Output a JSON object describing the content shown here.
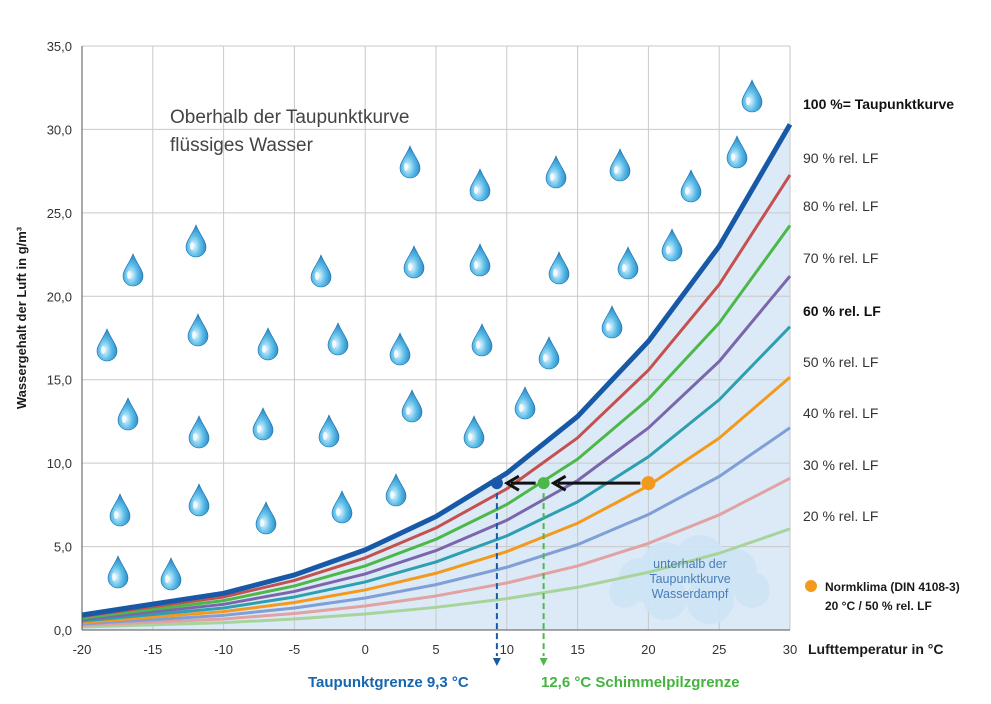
{
  "chart_data": {
    "type": "line",
    "ylabel": "Wassergehalt der Luft in g/m³",
    "xlabel": "Lufttemperatur in °C",
    "xlim": [
      -20,
      30
    ],
    "ylim": [
      0,
      35
    ],
    "xticks": [
      "-20",
      "-15",
      "-10",
      "-5",
      "0",
      "5",
      "10",
      "15",
      "20",
      "25",
      "30"
    ],
    "yticks": [
      "0,0",
      "5,0",
      "10,0",
      "15,0",
      "20,0",
      "25,0",
      "30,0",
      "35,0"
    ],
    "grid": true,
    "x": [
      -20,
      -10,
      -5,
      0,
      5,
      10,
      15,
      20,
      25,
      30
    ],
    "saturation": [
      0.9,
      2.2,
      3.3,
      4.8,
      6.8,
      9.4,
      12.8,
      17.3,
      23.0,
      30.3
    ],
    "series": [
      {
        "name": "100 %= Taupunktkurve",
        "rh": 100,
        "color": "#1759a6",
        "width": 5
      },
      {
        "name": "90 % rel. LF",
        "rh": 90,
        "color": "#c4504f",
        "width": 3
      },
      {
        "name": "80 % rel. LF",
        "rh": 80,
        "color": "#4cb849",
        "width": 3
      },
      {
        "name": "70 % rel. LF",
        "rh": 70,
        "color": "#7b66ad",
        "width": 3
      },
      {
        "name": "60 % rel. LF",
        "rh": 60,
        "color": "#2e9fb1",
        "width": 3
      },
      {
        "name": "50 % rel. LF",
        "rh": 50,
        "color": "#f39a1e",
        "width": 3
      },
      {
        "name": "40 % rel. LF",
        "rh": 40,
        "color": "#7f9fd6",
        "width": 3
      },
      {
        "name": "30 % rel. LF",
        "rh": 30,
        "color": "#e0a2a2",
        "width": 3
      },
      {
        "name": "20 % rel. LF",
        "rh": 20,
        "color": "#a8d49b",
        "width": 3
      }
    ],
    "annotations": {
      "above": [
        "Oberhalb der Taupunktkurve",
        "flüssiges Wasser"
      ],
      "below": [
        "unterhalb der",
        "Taupunktkurve",
        "Wasserdampf"
      ],
      "normklima_line1": "Normklima (DIN 4108-3)",
      "normklima_line2": "20 °C / 50 % rel. LF",
      "taupunkt_label": "Taupunktgrenze 9,3 °C",
      "schimmel_label": "12,6 °C Schimmelpilzgrenze"
    },
    "points": {
      "normklima": {
        "x": 20,
        "y": 8.8,
        "color": "#f39a1e"
      },
      "schimmel": {
        "x": 12.6,
        "y": 8.8,
        "color": "#4cb849"
      },
      "taupunkt": {
        "x": 9.3,
        "y": 8.8,
        "color": "#1759a6"
      }
    },
    "colors": {
      "fill": "#dbeaf6",
      "grid": "#c9c9c9",
      "arrow": "#111111",
      "drop": "#3aa0d8"
    }
  }
}
